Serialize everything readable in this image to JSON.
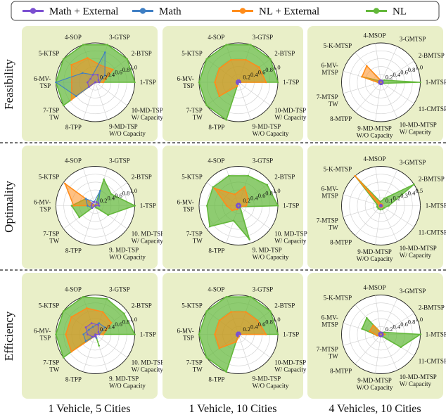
{
  "legend": [
    {
      "name": "Math + External",
      "color": "#7b4fd1"
    },
    {
      "name": "Math",
      "color": "#3f7fc4"
    },
    {
      "name": "NL + External",
      "color": "#ff8c1a"
    },
    {
      "name": "NL",
      "color": "#63b83a"
    }
  ],
  "row_labels": [
    "Feasibility",
    "Optimality",
    "Efficiency"
  ],
  "col_labels": [
    "1 Vehicle, 5 Cities",
    "1 Vehicle, 10 Cities",
    "4 Vehicles, 10 Cities"
  ],
  "axes_single": [
    {
      "id": "1",
      "lines": [
        "1-TSP"
      ]
    },
    {
      "id": "2",
      "lines": [
        "2-BTSP"
      ]
    },
    {
      "id": "3",
      "lines": [
        "3-GTSP"
      ]
    },
    {
      "id": "4",
      "lines": [
        "4-SOP"
      ]
    },
    {
      "id": "5",
      "lines": [
        "5-KTSP"
      ]
    },
    {
      "id": "6",
      "lines": [
        "6-MV-",
        "TSP"
      ]
    },
    {
      "id": "7",
      "lines": [
        "7-TSP",
        "TW"
      ]
    },
    {
      "id": "8",
      "lines": [
        "8-TPP"
      ]
    },
    {
      "id": "9",
      "lines": [
        "9-MD-TSP",
        "W/O Capacity"
      ]
    },
    {
      "id": "10",
      "lines": [
        "10-MD-TSP",
        "W/ Capacity"
      ]
    }
  ],
  "axes_single_alt": [
    {
      "id": "1",
      "lines": [
        "1-TSP"
      ]
    },
    {
      "id": "2",
      "lines": [
        "2-BTSP"
      ]
    },
    {
      "id": "3",
      "lines": [
        "3-GTSP"
      ]
    },
    {
      "id": "4",
      "lines": [
        "4-SOP"
      ]
    },
    {
      "id": "5",
      "lines": [
        "5-KTSP"
      ]
    },
    {
      "id": "6",
      "lines": [
        "6-MV-",
        "TSP"
      ]
    },
    {
      "id": "7",
      "lines": [
        "7-TSP",
        "TW"
      ]
    },
    {
      "id": "8",
      "lines": [
        "8-TPP"
      ]
    },
    {
      "id": "9",
      "lines": [
        "9. MD-TSP",
        "W/O Capacity"
      ]
    },
    {
      "id": "10",
      "lines": [
        "10. MD-TSP",
        "W/ Capacity"
      ]
    }
  ],
  "axes_multi": [
    {
      "id": "1",
      "lines": [
        "1-MTSP"
      ]
    },
    {
      "id": "2",
      "lines": [
        "2-BMTSP"
      ]
    },
    {
      "id": "3",
      "lines": [
        "3-GMTSP"
      ]
    },
    {
      "id": "4",
      "lines": [
        "4-MSOP"
      ]
    },
    {
      "id": "5",
      "lines": [
        "5-K-MTSP"
      ]
    },
    {
      "id": "6",
      "lines": [
        "6-MV-",
        "MTSP"
      ]
    },
    {
      "id": "7",
      "lines": [
        "7-MTSP",
        "TW"
      ]
    },
    {
      "id": "8",
      "lines": [
        "8-MTPP"
      ]
    },
    {
      "id": "9",
      "lines": [
        "9-MD-MTSP",
        "W/O Capacity"
      ]
    },
    {
      "id": "10",
      "lines": [
        "10-MD-MTSP",
        "W/ Capacity"
      ]
    },
    {
      "id": "11",
      "lines": [
        "11-CMTSP"
      ]
    }
  ],
  "chart_data": [
    {
      "type": "radar",
      "title": "Feasibility — 1 Vehicle, 5 Cities",
      "axes": "axes_single",
      "ticks": [
        "0.2",
        "0.4",
        "0.6",
        "0.8",
        "1.0"
      ],
      "max": 1.0,
      "series": [
        {
          "name": "NL",
          "values": [
            1.0,
            1.0,
            1.0,
            1.0,
            1.0,
            1.0,
            1.0,
            0.0,
            0.0,
            0.0
          ]
        },
        {
          "name": "NL + External",
          "values": [
            0.2,
            0.55,
            0.45,
            0.65,
            0.75,
            0.6,
            0.75,
            0.0,
            0.0,
            0.0
          ]
        },
        {
          "name": "Math",
          "values": [
            0.1,
            0.3,
            0.8,
            0.2,
            0.4,
            1.0,
            0.6,
            0.0,
            0.0,
            0.0
          ]
        },
        {
          "name": "Math + External",
          "values": [
            0.1,
            0.1,
            0.2,
            0.2,
            0.15,
            0.2,
            0.2,
            0.0,
            0.0,
            0.0
          ]
        }
      ]
    },
    {
      "type": "radar",
      "title": "Feasibility — 1 Vehicle, 10 Cities",
      "axes": "axes_single",
      "ticks": [
        "0.2",
        "0.4",
        "0.6",
        "0.8",
        "1.0"
      ],
      "max": 1.0,
      "series": [
        {
          "name": "NL",
          "values": [
            1.0,
            1.0,
            1.0,
            1.0,
            1.0,
            1.0,
            1.0,
            1.0,
            0.0,
            0.0
          ]
        },
        {
          "name": "NL + External",
          "values": [
            0.7,
            0.65,
            0.6,
            0.6,
            0.6,
            0.6,
            0.6,
            0.1,
            0.0,
            0.0
          ]
        },
        {
          "name": "Math",
          "values": [
            0.05,
            0.05,
            0.05,
            0.05,
            0.05,
            0.05,
            0.05,
            0.05,
            0.0,
            0.0
          ]
        },
        {
          "name": "Math + External",
          "values": [
            0.05,
            0.05,
            0.05,
            0.05,
            0.05,
            0.05,
            0.05,
            0.05,
            0.0,
            0.0
          ]
        }
      ]
    },
    {
      "type": "radar",
      "title": "Feasibility — 4 Vehicles, 10 Cities",
      "axes": "axes_multi",
      "ticks": [
        "0.2",
        "0.4",
        "0.6",
        "0.8",
        "1.0"
      ],
      "max": 1.0,
      "series": [
        {
          "name": "NL",
          "values": [
            1.0,
            0.1,
            0.05,
            0.05,
            0.05,
            0.5,
            0.05,
            0.05,
            0.05,
            0.05,
            0.05
          ]
        },
        {
          "name": "NL + External",
          "values": [
            0.05,
            0.05,
            0.05,
            0.05,
            0.55,
            0.5,
            0.05,
            0.05,
            0.05,
            0.05,
            0.05
          ]
        },
        {
          "name": "Math",
          "values": [
            0.05,
            0.05,
            0.05,
            0.05,
            0.05,
            0.05,
            0.05,
            0.05,
            0.05,
            0.05,
            0.05
          ]
        },
        {
          "name": "Math + External",
          "values": [
            0.05,
            0.05,
            0.05,
            0.05,
            0.05,
            0.05,
            0.05,
            0.05,
            0.05,
            0.05,
            0.05
          ]
        }
      ]
    },
    {
      "type": "radar",
      "title": "Optimality — 1 Vehicle, 5 Cities",
      "axes": "axes_single_alt",
      "ticks": [
        "0.2",
        "0.4",
        "0.6",
        "0.8",
        "1.0"
      ],
      "max": 1.0,
      "series": [
        {
          "name": "NL",
          "values": [
            1.0,
            0.5,
            0.7,
            0.0,
            0.3,
            0.6,
            0.5,
            0.0,
            0.05,
            0.4
          ]
        },
        {
          "name": "NL + External",
          "values": [
            0.0,
            0.1,
            0.0,
            0.0,
            0.95,
            0.55,
            0.0,
            0.0,
            0.0,
            0.0
          ]
        },
        {
          "name": "Math",
          "values": [
            0.1,
            0.1,
            0.4,
            0.1,
            0.3,
            0.2,
            0.1,
            0.0,
            0.0,
            0.0
          ]
        },
        {
          "name": "Math + External",
          "values": [
            0.1,
            0.1,
            0.1,
            0.1,
            0.1,
            0.1,
            0.1,
            0.0,
            0.0,
            0.0
          ]
        }
      ]
    },
    {
      "type": "radar",
      "title": "Optimality — 1 Vehicle, 10 Cities",
      "axes": "axes_single_alt",
      "ticks": [
        "0.2",
        "0.4",
        "0.6",
        "0.8",
        "1.0"
      ],
      "max": 1.0,
      "series": [
        {
          "name": "NL",
          "values": [
            1.0,
            0.9,
            0.8,
            0.8,
            0.8,
            0.8,
            0.9,
            0.4,
            0.9,
            0.05
          ]
        },
        {
          "name": "NL + External",
          "values": [
            0.2,
            0.3,
            0.5,
            0.3,
            0.75,
            0.3,
            0.2,
            0.1,
            0.05,
            0.05
          ]
        },
        {
          "name": "Math",
          "values": [
            0.05,
            0.05,
            0.05,
            0.05,
            0.05,
            0.05,
            0.05,
            0.05,
            0.05,
            0.05
          ]
        },
        {
          "name": "Math + External",
          "values": [
            0.05,
            0.05,
            0.05,
            0.05,
            0.05,
            0.05,
            0.05,
            0.05,
            0.05,
            0.05
          ]
        }
      ]
    },
    {
      "type": "radar",
      "title": "Optimality — 4 Vehicles, 10 Cities",
      "axes": "axes_multi",
      "ticks": [
        "0.1",
        "0.2",
        "0.3",
        "0.4",
        "0.5"
      ],
      "max": 0.5,
      "series": [
        {
          "name": "NL",
          "values": [
            0.1,
            0.5,
            0.1,
            0.05,
            0.5,
            0.05,
            0.05,
            0.05,
            0.05,
            0.05,
            0.05
          ]
        },
        {
          "name": "NL + External",
          "values": [
            0.02,
            0.02,
            0.02,
            0.02,
            0.5,
            0.02,
            0.02,
            0.02,
            0.02,
            0.02,
            0.02
          ]
        },
        {
          "name": "Math",
          "values": [
            0.01,
            0.01,
            0.01,
            0.01,
            0.01,
            0.01,
            0.01,
            0.01,
            0.01,
            0.01,
            0.01
          ]
        },
        {
          "name": "Math + External",
          "values": [
            0.01,
            0.01,
            0.01,
            0.01,
            0.01,
            0.01,
            0.01,
            0.01,
            0.01,
            0.01,
            0.01
          ]
        }
      ]
    },
    {
      "type": "radar",
      "title": "Efficiency — 1 Vehicle, 5 Cities",
      "axes": "axes_single_alt",
      "ticks": [
        "0.2",
        "0.4",
        "0.6",
        "0.8",
        "1.0"
      ],
      "max": 1.0,
      "series": [
        {
          "name": "NL",
          "values": [
            1.0,
            0.9,
            0.95,
            1.0,
            1.0,
            1.0,
            1.0,
            0.0,
            0.3,
            0.0
          ]
        },
        {
          "name": "NL + External",
          "values": [
            0.2,
            0.5,
            0.6,
            0.7,
            0.75,
            0.75,
            0.75,
            0.05,
            0.1,
            0.0
          ]
        },
        {
          "name": "Math",
          "values": [
            0.1,
            0.3,
            0.3,
            0.2,
            0.2,
            0.3,
            0.3,
            0.05,
            0.1,
            0.0
          ]
        },
        {
          "name": "Math + External",
          "values": [
            0.1,
            0.1,
            0.25,
            0.3,
            0.3,
            0.2,
            0.1,
            0.05,
            0.05,
            0.0
          ]
        }
      ]
    },
    {
      "type": "radar",
      "title": "Efficiency — 1 Vehicle, 10 Cities",
      "axes": "axes_single",
      "ticks": [
        "0.2",
        "0.4",
        "0.6",
        "0.8",
        "1.0"
      ],
      "max": 1.0,
      "series": [
        {
          "name": "NL",
          "values": [
            1.0,
            1.0,
            1.0,
            1.0,
            1.0,
            1.0,
            1.0,
            1.0,
            0.0,
            0.0
          ]
        },
        {
          "name": "NL + External",
          "values": [
            0.7,
            0.6,
            0.6,
            0.6,
            0.6,
            0.6,
            0.6,
            0.2,
            0.05,
            0.0
          ]
        },
        {
          "name": "Math",
          "values": [
            0.05,
            0.05,
            0.05,
            0.05,
            0.05,
            0.05,
            0.05,
            0.05,
            0.0,
            0.0
          ]
        },
        {
          "name": "Math + External",
          "values": [
            0.05,
            0.05,
            0.05,
            0.05,
            0.05,
            0.05,
            0.05,
            0.05,
            0.0,
            0.0
          ]
        }
      ]
    },
    {
      "type": "radar",
      "title": "Efficiency — 4 Vehicles, 10 Cities",
      "axes": "axes_multi",
      "ticks": [
        "0.2",
        "0.4",
        "0.6",
        "0.8",
        "1.0"
      ],
      "max": 1.0,
      "series": [
        {
          "name": "NL",
          "values": [
            1.0,
            0.1,
            0.05,
            0.05,
            0.55,
            0.5,
            0.1,
            0.05,
            0.05,
            0.05,
            0.6
          ]
        },
        {
          "name": "NL + External",
          "values": [
            0.1,
            0.05,
            0.05,
            0.05,
            0.3,
            0.3,
            0.1,
            0.05,
            0.05,
            0.05,
            0.05
          ]
        },
        {
          "name": "Math",
          "values": [
            0.05,
            0.05,
            0.05,
            0.05,
            0.05,
            0.05,
            0.05,
            0.05,
            0.05,
            0.05,
            0.05
          ]
        },
        {
          "name": "Math + External",
          "values": [
            0.05,
            0.05,
            0.05,
            0.05,
            0.05,
            0.05,
            0.05,
            0.05,
            0.05,
            0.05,
            0.05
          ]
        }
      ]
    }
  ]
}
